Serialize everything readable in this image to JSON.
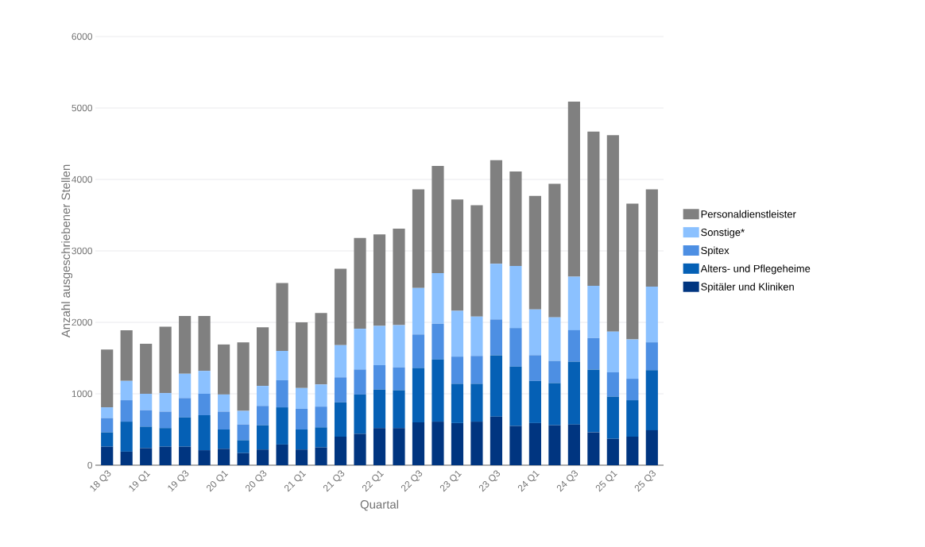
{
  "chart_data": {
    "type": "bar",
    "stacked": true,
    "xlabel": "Quartal",
    "ylabel": "Anzahl ausgeschriebener Stellen",
    "categories": [
      "18 Q3",
      null,
      "19 Q1",
      null,
      "19 Q3",
      null,
      "20 Q1",
      null,
      "20 Q3",
      null,
      "21 Q1",
      null,
      "21 Q3",
      null,
      "22 Q1",
      null,
      "22 Q3",
      null,
      "23 Q1",
      null,
      "23 Q3",
      null,
      "24 Q1",
      null,
      "24 Q3",
      null,
      "25 Q1",
      null,
      "25 Q3"
    ],
    "ylim": [
      0,
      6000
    ],
    "yticks": [
      0,
      1000,
      2000,
      3000,
      4000,
      5000,
      6000
    ],
    "grid": "y",
    "legend": "right",
    "series": [
      {
        "name": "Spitäler und Kliniken",
        "color": "#003580",
        "values": [
          260,
          190,
          240,
          260,
          260,
          210,
          230,
          170,
          220,
          290,
          220,
          250,
          400,
          440,
          520,
          520,
          600,
          610,
          590,
          610,
          680,
          550,
          590,
          560,
          570,
          460,
          370,
          400,
          490
        ]
      },
      {
        "name": "Alters- und Pflegeheime",
        "color": "#0560b5",
        "values": [
          200,
          420,
          300,
          260,
          410,
          490,
          270,
          180,
          340,
          520,
          280,
          280,
          480,
          550,
          540,
          530,
          760,
          870,
          550,
          530,
          860,
          830,
          590,
          590,
          880,
          880,
          590,
          510,
          840
        ]
      },
      {
        "name": "Spitex",
        "color": "#4d8fe3",
        "values": [
          200,
          300,
          230,
          230,
          270,
          300,
          250,
          220,
          270,
          380,
          290,
          290,
          350,
          350,
          340,
          320,
          470,
          500,
          380,
          390,
          500,
          540,
          360,
          310,
          440,
          440,
          340,
          300,
          390
        ]
      },
      {
        "name": "Sonstige*",
        "color": "#8bc1ff",
        "values": [
          150,
          270,
          230,
          260,
          340,
          320,
          240,
          190,
          280,
          410,
          290,
          310,
          450,
          570,
          550,
          590,
          650,
          710,
          640,
          550,
          780,
          870,
          640,
          610,
          750,
          730,
          570,
          550,
          780
        ]
      },
      {
        "name": "Personaldienstleister",
        "color": "#808080",
        "values": [
          810,
          710,
          700,
          930,
          810,
          770,
          700,
          960,
          820,
          950,
          920,
          1000,
          1070,
          1270,
          1280,
          1350,
          1380,
          1500,
          1560,
          1560,
          1450,
          1320,
          1590,
          1870,
          2450,
          2160,
          2750,
          1900,
          1360
        ]
      }
    ]
  }
}
